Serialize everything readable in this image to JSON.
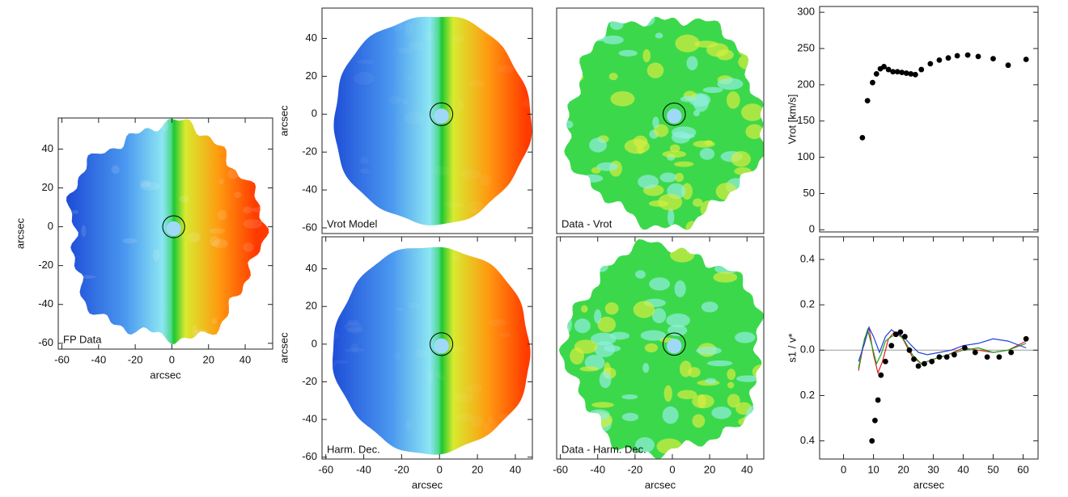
{
  "chart_data": [
    {
      "type": "map",
      "label": "FP Data",
      "xlim": [
        -62,
        55
      ],
      "ylim": [
        -63,
        56
      ],
      "xticks": [
        -60,
        -40,
        -20,
        0,
        20,
        40
      ],
      "yticks": [
        40,
        20,
        0,
        -20,
        -40,
        -60
      ],
      "xlabel": "arcsec",
      "ylabel": "arcsec"
    },
    {
      "type": "map",
      "label": "Vrot Model",
      "xlim": [
        -62,
        49
      ],
      "ylim": [
        -63,
        56
      ],
      "yticks": [
        40,
        20,
        0,
        -20,
        -40,
        -60
      ],
      "ylabel": "arcsec"
    },
    {
      "type": "map",
      "label": "Data - Vrot",
      "xlim": [
        -62,
        49
      ],
      "ylim": [
        -63,
        56
      ]
    },
    {
      "type": "map",
      "label": "Harm. Dec.",
      "xlim": [
        -62,
        49
      ],
      "ylim": [
        -61,
        57
      ],
      "xticks": [
        -60,
        -40,
        -20,
        0,
        20,
        40
      ],
      "yticks": [
        40,
        20,
        0,
        -20,
        -40,
        -60
      ],
      "xlabel": "arcsec",
      "ylabel": "arcsec"
    },
    {
      "type": "map",
      "label": "Data - Harm. Dec.",
      "xlim": [
        -62,
        49
      ],
      "ylim": [
        -61,
        57
      ],
      "xticks": [
        -60,
        -40,
        -20,
        0,
        20,
        40
      ],
      "xlabel": "arcsec"
    },
    {
      "type": "scatter",
      "xlim": [
        -8,
        65
      ],
      "ylim": [
        -3,
        308
      ],
      "yticks": [
        0,
        50,
        100,
        150,
        200,
        250,
        300
      ],
      "ylabel": "Vrot  [km/s]",
      "series": [
        {
          "color": "#000000",
          "mode": "markers",
          "x": [
            6.3,
            8,
            9.7,
            11,
            12.3,
            13.5,
            15,
            16.5,
            18,
            19.5,
            21,
            22.5,
            24,
            26,
            29,
            32,
            35,
            38,
            41.5,
            45,
            50,
            55,
            61
          ],
          "values": [
            127,
            178,
            203,
            215,
            222,
            225,
            221,
            218,
            218,
            217,
            216,
            215,
            214,
            221,
            229,
            234,
            237,
            240,
            241,
            239,
            236,
            227,
            235
          ]
        }
      ]
    },
    {
      "type": "scatter",
      "xlim": [
        -8,
        65
      ],
      "ylim": [
        -0.48,
        0.5
      ],
      "xticks": [
        0,
        10,
        20,
        30,
        40,
        50,
        60
      ],
      "yticks": [
        {
          "value": -0.4,
          "label": "0.4"
        },
        {
          "value": -0.2,
          "label": "0.2"
        },
        {
          "value": 0,
          "label": "0.0"
        },
        0.2,
        0.4
      ],
      "xlabel": "arcsec",
      "ylabel": "s1 / v*",
      "zero_line": true,
      "series": [
        {
          "color": "#e02020",
          "mode": "lines",
          "x": [
            5,
            7,
            8.5,
            10,
            11.5,
            13,
            15,
            17,
            19,
            21,
            23,
            26,
            30,
            35,
            40,
            45,
            50,
            55,
            61
          ],
          "values": [
            -0.09,
            0.05,
            0.1,
            -0.02,
            -0.1,
            -0.05,
            0.05,
            0.08,
            0.07,
            0.02,
            -0.03,
            -0.06,
            -0.04,
            -0.02,
            0.01,
            0,
            -0.01,
            0,
            0.04
          ]
        },
        {
          "color": "#20a020",
          "mode": "lines",
          "x": [
            5,
            6.5,
            8,
            9.5,
            11,
            12.5,
            14,
            16,
            18,
            20,
            23,
            26,
            30,
            35,
            40,
            45,
            50,
            55,
            61
          ],
          "values": [
            -0.08,
            0.02,
            0.09,
            0.02,
            -0.06,
            -0.02,
            0.04,
            0.06,
            0.07,
            0.05,
            -0.02,
            -0.06,
            -0.04,
            -0.02,
            0,
            0.01,
            -0.01,
            0,
            0.03
          ]
        },
        {
          "color": "#2040e0",
          "mode": "lines",
          "x": [
            5,
            7,
            8.5,
            10,
            12,
            14,
            16,
            18,
            20,
            22,
            25,
            28,
            32,
            36,
            40,
            45,
            50,
            55,
            61
          ],
          "values": [
            -0.05,
            0.03,
            0.1,
            0.06,
            -0.01,
            0.06,
            0.09,
            0.07,
            0.06,
            0.03,
            -0.01,
            -0.02,
            -0.01,
            0,
            0.02,
            0.03,
            0.05,
            0.04,
            0.01
          ]
        },
        {
          "color": "#000000",
          "mode": "markers",
          "x": [
            9.5,
            10.5,
            11.5,
            12.5,
            14,
            16,
            17.5,
            19,
            20.5,
            22,
            23.5,
            25,
            27,
            29.5,
            32,
            34.5,
            37,
            40.5,
            44,
            48,
            52,
            56,
            61
          ],
          "values": [
            -0.4,
            -0.31,
            -0.22,
            -0.11,
            -0.05,
            0.02,
            0.07,
            0.08,
            0.06,
            0,
            -0.04,
            -0.07,
            -0.06,
            -0.05,
            -0.03,
            -0.03,
            -0.02,
            0.01,
            -0.01,
            -0.03,
            -0.03,
            -0.01,
            0.05
          ]
        }
      ]
    }
  ]
}
